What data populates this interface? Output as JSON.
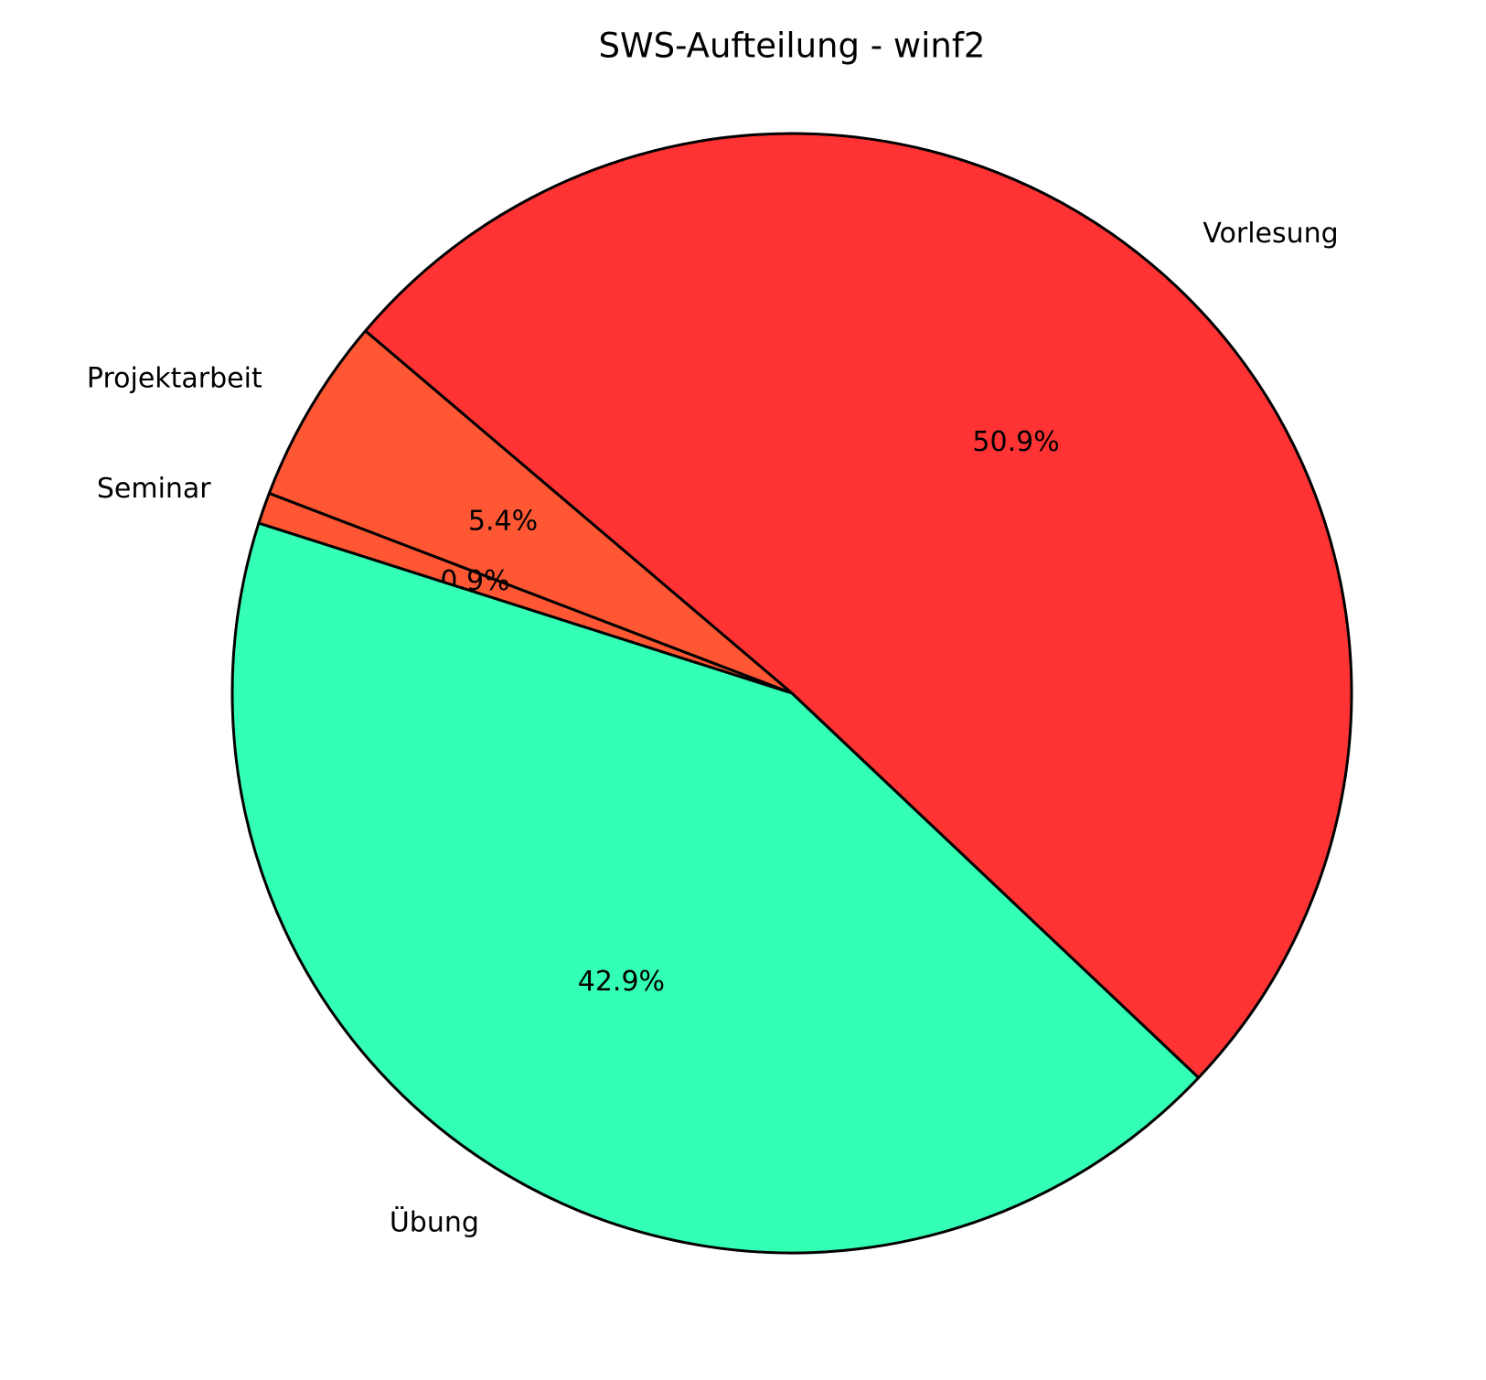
{
  "chart_data": {
    "type": "pie",
    "title": "SWS-Aufteilung - winf2",
    "categories": [
      "Vorlesung",
      "Projektarbeit",
      "Seminar",
      "Übung"
    ],
    "values": [
      50.9,
      5.4,
      0.9,
      42.9
    ],
    "value_labels": [
      "50.9%",
      "5.4%",
      "0.9%",
      "42.9%"
    ],
    "colors": [
      "#ff3333",
      "#ff5733",
      "#ff5733",
      "#33ffb5"
    ],
    "startangle": -43.4,
    "counterclockwise": true
  }
}
